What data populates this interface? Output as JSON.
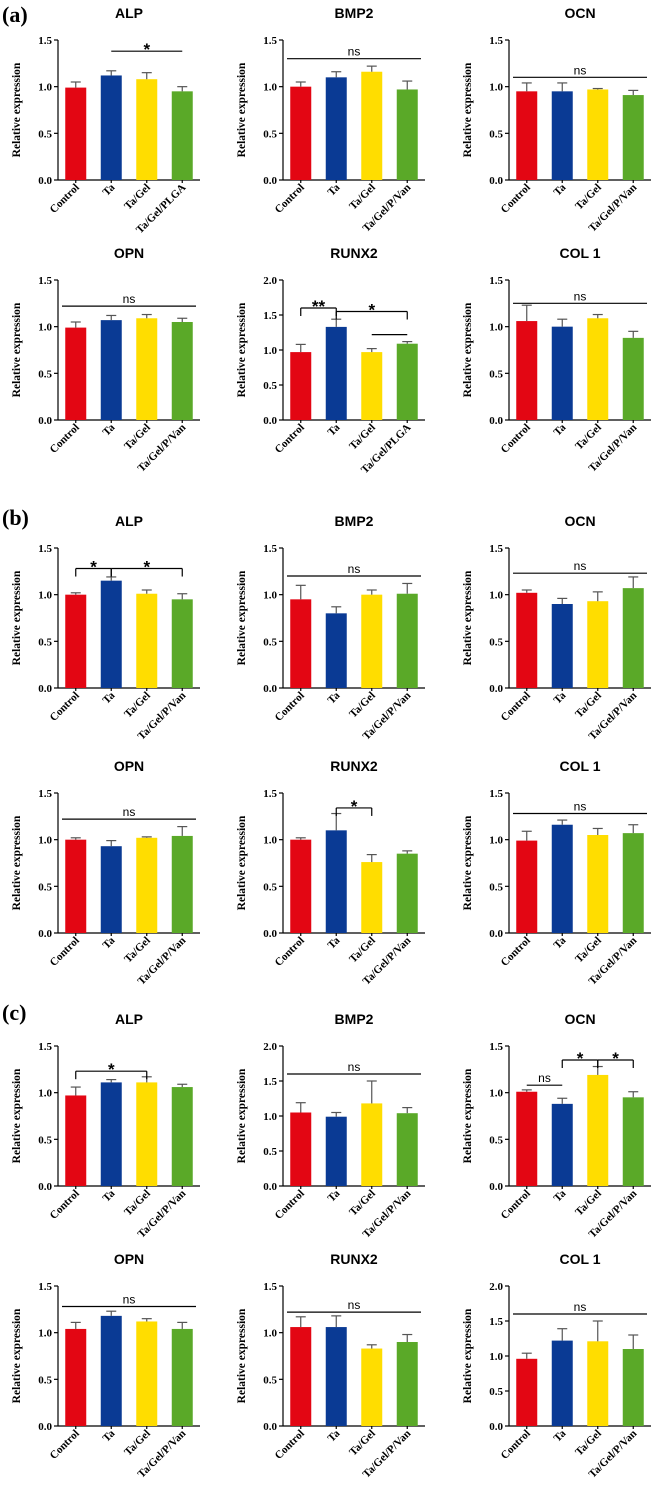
{
  "panel_labels": [
    "(a)",
    "(b)",
    "(c)"
  ],
  "y_axis_label": "Relative expression",
  "colors": {
    "Control": "#e30613",
    "Ta": "#0a3a94",
    "Ta/Gel": "#ffdd00",
    "Ta/Gel/PLGA": "#5aa928",
    "Ta/Gel/P/Van": "#5aa928",
    "error": "#555555",
    "axis": "#000000"
  },
  "chart_data": [
    {
      "panel": "(a)",
      "type": "bar",
      "title": "ALP",
      "categories": [
        "Control",
        "Ta",
        "Ta/Gel",
        "Ta/Gel/PLGA"
      ],
      "values": [
        0.99,
        1.12,
        1.08,
        0.95
      ],
      "errors": [
        0.06,
        0.05,
        0.07,
        0.05
      ],
      "ylim": [
        0,
        1.5
      ],
      "yticks": [
        "0.0",
        "0.5",
        "1.0",
        "1.5"
      ],
      "ylabel": "Relative expression",
      "significance": [
        {
          "label": "*",
          "from": 1,
          "to": 3,
          "y": 1.38
        }
      ]
    },
    {
      "panel": "(a)",
      "type": "bar",
      "title": "BMP2",
      "categories": [
        "Control",
        "Ta",
        "Ta/Gel",
        "Ta/Gel/P/Van"
      ],
      "values": [
        1.0,
        1.1,
        1.16,
        0.97
      ],
      "errors": [
        0.05,
        0.06,
        0.06,
        0.09
      ],
      "ylim": [
        0,
        1.5
      ],
      "yticks": [
        "0.0",
        "0.5",
        "1.0",
        "1.5"
      ],
      "ylabel": "Relative expression",
      "significance": [
        {
          "label": "ns",
          "from": 0,
          "to": 3,
          "y": 1.3
        }
      ]
    },
    {
      "panel": "(a)",
      "type": "bar",
      "title": "OCN",
      "categories": [
        "Control",
        "Ta",
        "Ta/Gel",
        "Ta/Gel/P/Van"
      ],
      "values": [
        0.95,
        0.95,
        0.97,
        0.91
      ],
      "errors": [
        0.09,
        0.09,
        0.01,
        0.05
      ],
      "ylim": [
        0,
        1.5
      ],
      "yticks": [
        "0.0",
        "0.5",
        "1.0",
        "1.5"
      ],
      "ylabel": "Relative expression",
      "significance": [
        {
          "label": "ns",
          "from": 0,
          "to": 3,
          "y": 1.1
        }
      ]
    },
    {
      "panel": "(a)",
      "type": "bar",
      "title": "OPN",
      "categories": [
        "Control",
        "Ta",
        "Ta/Gel",
        "Ta/Gel/P/Van"
      ],
      "values": [
        0.99,
        1.07,
        1.09,
        1.05
      ],
      "errors": [
        0.06,
        0.05,
        0.04,
        0.04
      ],
      "ylim": [
        0,
        1.5
      ],
      "yticks": [
        "0.0",
        "0.5",
        "1.0",
        "1.5"
      ],
      "ylabel": "Relative expression",
      "significance": [
        {
          "label": "ns",
          "from": 0,
          "to": 3,
          "y": 1.22
        }
      ]
    },
    {
      "panel": "(a)",
      "type": "bar",
      "title": "RUNX2",
      "categories": [
        "Control",
        "Ta",
        "Ta/Gel",
        "Ta/Gel/PLGA"
      ],
      "values": [
        0.97,
        1.33,
        0.97,
        1.09
      ],
      "errors": [
        0.11,
        0.11,
        0.05,
        0.03
      ],
      "ylim": [
        0,
        2.0
      ],
      "yticks": [
        "0.0",
        "0.5",
        "1.0",
        "1.5",
        "2.0"
      ],
      "ylabel": "Relative expression",
      "significance": [
        {
          "label": "**",
          "from": 0,
          "to": 1,
          "y": 1.6,
          "ticks": true
        },
        {
          "label": "*",
          "from": 1,
          "to": 3,
          "y": 1.55,
          "ticks": true
        },
        {
          "label": "",
          "from": 2,
          "to": 3,
          "y": 1.22,
          "ticks": false
        }
      ]
    },
    {
      "panel": "(a)",
      "type": "bar",
      "title": "COL 1",
      "categories": [
        "Control",
        "Ta",
        "Ta/Gel",
        "Ta/Gel/P/Van"
      ],
      "values": [
        1.06,
        1.0,
        1.09,
        0.88
      ],
      "errors": [
        0.17,
        0.08,
        0.04,
        0.07
      ],
      "ylim": [
        0,
        1.5
      ],
      "yticks": [
        "0.0",
        "0.5",
        "1.0",
        "1.5"
      ],
      "ylabel": "Relative expression",
      "significance": [
        {
          "label": "ns",
          "from": 0,
          "to": 3,
          "y": 1.25
        }
      ]
    },
    {
      "panel": "(b)",
      "type": "bar",
      "title": "ALP",
      "categories": [
        "Control",
        "Ta",
        "Ta/Gel",
        "Ta/Gel/P/Van"
      ],
      "values": [
        1.0,
        1.15,
        1.01,
        0.95
      ],
      "errors": [
        0.02,
        0.04,
        0.04,
        0.06
      ],
      "ylim": [
        0,
        1.5
      ],
      "yticks": [
        "0.0",
        "0.5",
        "1.0",
        "1.5"
      ],
      "ylabel": "Relative expression",
      "significance": [
        {
          "label": "*",
          "from": 0,
          "to": 1,
          "y": 1.28,
          "ticks": true
        },
        {
          "label": "*",
          "from": 1,
          "to": 3,
          "y": 1.28,
          "ticks": true
        }
      ]
    },
    {
      "panel": "(b)",
      "type": "bar",
      "title": "BMP2",
      "categories": [
        "Control",
        "Ta",
        "Ta/Gel",
        "Ta/Gel/P/Van"
      ],
      "values": [
        0.95,
        0.8,
        1.0,
        1.01
      ],
      "errors": [
        0.15,
        0.07,
        0.05,
        0.11
      ],
      "ylim": [
        0,
        1.5
      ],
      "yticks": [
        "0.0",
        "0.5",
        "1.0",
        "1.5"
      ],
      "ylabel": "Relative expression",
      "significance": [
        {
          "label": "ns",
          "from": 0,
          "to": 3,
          "y": 1.2
        }
      ]
    },
    {
      "panel": "(b)",
      "type": "bar",
      "title": "OCN",
      "categories": [
        "Control",
        "Ta",
        "Ta/Gel",
        "Ta/Gel/P/Van"
      ],
      "values": [
        1.02,
        0.9,
        0.93,
        1.07
      ],
      "errors": [
        0.03,
        0.06,
        0.1,
        0.12
      ],
      "ylim": [
        0,
        1.5
      ],
      "yticks": [
        "0.0",
        "0.5",
        "1.0",
        "1.5"
      ],
      "ylabel": "Relative expression",
      "significance": [
        {
          "label": "ns",
          "from": 0,
          "to": 3,
          "y": 1.23
        }
      ]
    },
    {
      "panel": "(b)",
      "type": "bar",
      "title": "OPN",
      "categories": [
        "Control",
        "Ta",
        "Ta/Gel",
        "Ta/Gel/P/Van"
      ],
      "values": [
        1.0,
        0.93,
        1.02,
        1.04
      ],
      "errors": [
        0.02,
        0.06,
        0.01,
        0.1
      ],
      "ylim": [
        0,
        1.5
      ],
      "yticks": [
        "0.0",
        "0.5",
        "1.0",
        "1.5"
      ],
      "ylabel": "Relative expression",
      "significance": [
        {
          "label": "ns",
          "from": 0,
          "to": 3,
          "y": 1.22
        }
      ]
    },
    {
      "panel": "(b)",
      "type": "bar",
      "title": "RUNX2",
      "categories": [
        "Control",
        "Ta",
        "Ta/Gel",
        "Ta/Gel/P/Van"
      ],
      "values": [
        1.0,
        1.1,
        0.76,
        0.85
      ],
      "errors": [
        0.02,
        0.18,
        0.08,
        0.03
      ],
      "ylim": [
        0,
        1.5
      ],
      "yticks": [
        "0.0",
        "0.5",
        "1.0",
        "1.5"
      ],
      "ylabel": "Relative expression",
      "significance": [
        {
          "label": "*",
          "from": 1,
          "to": 2,
          "y": 1.34,
          "ticks": true
        }
      ]
    },
    {
      "panel": "(b)",
      "type": "bar",
      "title": "COL 1",
      "categories": [
        "Control",
        "Ta",
        "Ta/Gel",
        "Ta/Gel/P/Van"
      ],
      "values": [
        0.99,
        1.16,
        1.05,
        1.07
      ],
      "errors": [
        0.1,
        0.05,
        0.07,
        0.09
      ],
      "ylim": [
        0,
        1.5
      ],
      "yticks": [
        "0.0",
        "0.5",
        "1.0",
        "1.5"
      ],
      "ylabel": "Relative expression",
      "significance": [
        {
          "label": "ns",
          "from": 0,
          "to": 3,
          "y": 1.28
        }
      ]
    },
    {
      "panel": "(c)",
      "type": "bar",
      "title": "ALP",
      "categories": [
        "Control",
        "Ta",
        "Ta/Gel",
        "Ta/Gel/P/Van"
      ],
      "values": [
        0.97,
        1.11,
        1.11,
        1.06
      ],
      "errors": [
        0.09,
        0.03,
        0.06,
        0.03
      ],
      "ylim": [
        0,
        1.5
      ],
      "yticks": [
        "0.0",
        "0.5",
        "1.0",
        "1.5"
      ],
      "ylabel": "Relative expression",
      "significance": [
        {
          "label": "*",
          "from": 0,
          "to": 2,
          "y": 1.23,
          "ticks": true
        }
      ]
    },
    {
      "panel": "(c)",
      "type": "bar",
      "title": "BMP2",
      "categories": [
        "Control",
        "Ta",
        "Ta/Gel",
        "Ta/Gel/P/Van"
      ],
      "values": [
        1.05,
        0.99,
        1.18,
        1.04
      ],
      "errors": [
        0.14,
        0.06,
        0.32,
        0.08
      ],
      "ylim": [
        0,
        2.0
      ],
      "yticks": [
        "0.0",
        "0.5",
        "1.0",
        "1.5",
        "2.0"
      ],
      "ylabel": "Relative expression",
      "significance": [
        {
          "label": "ns",
          "from": 0,
          "to": 3,
          "y": 1.6
        }
      ]
    },
    {
      "panel": "(c)",
      "type": "bar",
      "title": "OCN",
      "categories": [
        "Control",
        "Ta",
        "Ta/Gel",
        "Ta/Gel/P/Van"
      ],
      "values": [
        1.01,
        0.88,
        1.19,
        0.95
      ],
      "errors": [
        0.02,
        0.06,
        0.09,
        0.06
      ],
      "ylim": [
        0,
        1.5
      ],
      "yticks": [
        "0.0",
        "0.5",
        "1.0",
        "1.5"
      ],
      "ylabel": "Relative expression",
      "significance": [
        {
          "label": "ns",
          "from": 0,
          "to": 1,
          "y": 1.08,
          "ticks": false
        },
        {
          "label": "*",
          "from": 1,
          "to": 2,
          "y": 1.35,
          "ticks": true
        },
        {
          "label": "*",
          "from": 2,
          "to": 3,
          "y": 1.35,
          "ticks": true
        }
      ]
    },
    {
      "panel": "(c)",
      "type": "bar",
      "title": "OPN",
      "categories": [
        "Control",
        "Ta",
        "Ta/Gel",
        "Ta/Gel/P/Van"
      ],
      "values": [
        1.04,
        1.18,
        1.12,
        1.04
      ],
      "errors": [
        0.07,
        0.05,
        0.03,
        0.07
      ],
      "ylim": [
        0,
        1.5
      ],
      "yticks": [
        "0.0",
        "0.5",
        "1.0",
        "1.5"
      ],
      "ylabel": "Relative expression",
      "significance": [
        {
          "label": "ns",
          "from": 0,
          "to": 3,
          "y": 1.28
        }
      ]
    },
    {
      "panel": "(c)",
      "type": "bar",
      "title": "RUNX2",
      "categories": [
        "Control",
        "Ta",
        "Ta/Gel",
        "Ta/Gel/P/Van"
      ],
      "values": [
        1.06,
        1.06,
        0.83,
        0.9
      ],
      "errors": [
        0.11,
        0.12,
        0.04,
        0.08
      ],
      "ylim": [
        0,
        1.5
      ],
      "yticks": [
        "0.0",
        "0.5",
        "1.0",
        "1.5"
      ],
      "ylabel": "Relative expression",
      "significance": [
        {
          "label": "ns",
          "from": 0,
          "to": 3,
          "y": 1.22
        }
      ]
    },
    {
      "panel": "(c)",
      "type": "bar",
      "title": "COL 1",
      "categories": [
        "Control",
        "Ta",
        "Ta/Gel",
        "Ta/Gel/P/Van"
      ],
      "values": [
        0.96,
        1.22,
        1.21,
        1.1
      ],
      "errors": [
        0.08,
        0.17,
        0.29,
        0.2
      ],
      "ylim": [
        0,
        2.0
      ],
      "yticks": [
        "0.0",
        "0.5",
        "1.0",
        "1.5",
        "2.0"
      ],
      "ylabel": "Relative expression",
      "significance": [
        {
          "label": "ns",
          "from": 0,
          "to": 3,
          "y": 1.6
        }
      ]
    }
  ]
}
